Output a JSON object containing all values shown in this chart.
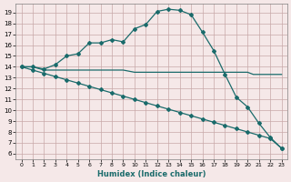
{
  "title": "",
  "xlabel": "Humidex (Indice chaleur)",
  "bg_color": "#f5e8e8",
  "grid_color": "#c8a8a8",
  "line_color": "#1a6b6b",
  "xlim": [
    -0.5,
    23.5
  ],
  "ylim": [
    5.5,
    19.8
  ],
  "xticks": [
    0,
    1,
    2,
    3,
    4,
    5,
    6,
    7,
    8,
    9,
    10,
    11,
    12,
    13,
    14,
    15,
    16,
    17,
    18,
    19,
    20,
    21,
    22,
    23
  ],
  "yticks": [
    6,
    7,
    8,
    9,
    10,
    11,
    12,
    13,
    14,
    15,
    16,
    17,
    18,
    19
  ],
  "line1_x": [
    0,
    1,
    2,
    3,
    4,
    5,
    6,
    7,
    8,
    9,
    10,
    11,
    12,
    13,
    14,
    15,
    16,
    17,
    18,
    19,
    20,
    21,
    22,
    23
  ],
  "line1_y": [
    14.0,
    14.0,
    13.8,
    14.2,
    15.0,
    15.2,
    16.2,
    16.2,
    16.5,
    16.3,
    17.5,
    17.9,
    19.1,
    19.3,
    19.2,
    18.8,
    17.2,
    15.5,
    13.3,
    11.2,
    10.3,
    8.8,
    7.5,
    6.5
  ],
  "line2_x": [
    0,
    1,
    2,
    3,
    4,
    5,
    6,
    7,
    8,
    9,
    10,
    11,
    12,
    13,
    14,
    15,
    16,
    17,
    18,
    19,
    20,
    20.5,
    23
  ],
  "line2_y": [
    14.0,
    14.0,
    13.7,
    13.7,
    13.7,
    13.7,
    13.7,
    13.7,
    13.7,
    13.7,
    13.5,
    13.5,
    13.5,
    13.5,
    13.5,
    13.5,
    13.5,
    13.5,
    13.5,
    13.5,
    13.5,
    13.3,
    13.3
  ],
  "line3_x": [
    0,
    1,
    2,
    3,
    4,
    5,
    6,
    7,
    8,
    9,
    10,
    11,
    12,
    13,
    14,
    15,
    16,
    17,
    18,
    19,
    20,
    21,
    22,
    23
  ],
  "line3_y": [
    14.0,
    13.7,
    13.4,
    13.1,
    12.8,
    12.5,
    12.2,
    11.9,
    11.6,
    11.3,
    11.0,
    10.7,
    10.4,
    10.1,
    9.8,
    9.5,
    9.2,
    8.9,
    8.6,
    8.3,
    8.0,
    7.7,
    7.4,
    6.5
  ],
  "marker_style": "D",
  "marker_size": 2.0,
  "linewidth": 0.9
}
